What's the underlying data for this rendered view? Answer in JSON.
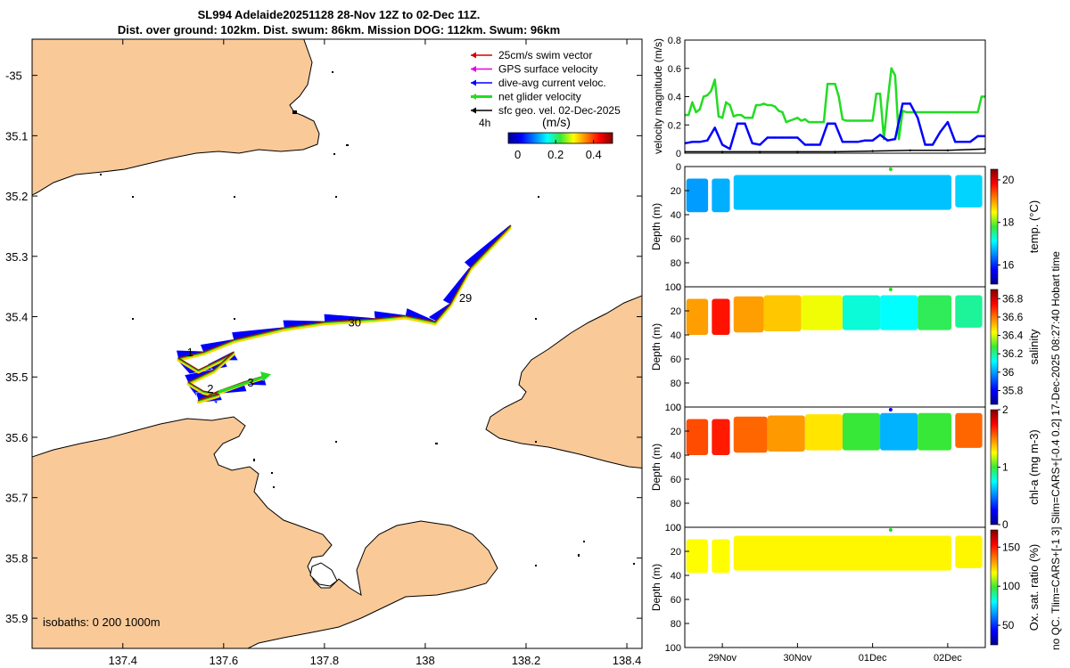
{
  "header": {
    "line1": "SL994 Adelaide20251128 28-Nov 12Z to 02-Dec 11Z.",
    "line2": "Dist. over ground: 102km. Dist. swum: 86km. Mission DOG: 112km. Swum: 96km"
  },
  "side_note": "no QC. Tlim=CARS+[-1 3] Slim=CARS+[-0.4 0.2] 17-Dec-2025 08:27:40 Hobart time",
  "colors": {
    "land": "#f9c998",
    "swim": "#d40000",
    "gps": "#e600e6",
    "dive_avg": "#0000ff",
    "net": "#22dd22",
    "geo": "#000000"
  },
  "chart_data": [
    {
      "type": "map",
      "name": "track-map",
      "xticks": [
        "137.4",
        "137.6",
        "137.8",
        "138",
        "138.2",
        "138.4"
      ],
      "xtick_values": [
        137.4,
        137.6,
        137.8,
        138.0,
        138.2,
        138.4
      ],
      "yticks": [
        "-35",
        "35.1",
        "35.2",
        "35.3",
        "35.4",
        "35.5",
        "35.6",
        "35.7",
        "35.8",
        "35.9"
      ],
      "ytick_values": [
        -35.0,
        -35.1,
        -35.2,
        -35.3,
        -35.4,
        -35.5,
        -35.6,
        -35.7,
        -35.8,
        -35.9
      ],
      "xlim": [
        137.22,
        138.43
      ],
      "ylim": [
        -35.95,
        -34.94
      ],
      "legend": [
        {
          "label": "25cm/s swim vector",
          "color_key": "swim"
        },
        {
          "label": "GPS surface velocity",
          "color_key": "gps"
        },
        {
          "label": "dive-avg current veloc.",
          "color_key": "dive_avg"
        },
        {
          "label": "net glider velocity",
          "color_key": "net"
        },
        {
          "label": "sfc geo. vel. 02-Dec-2025",
          "color_key": "geo"
        }
      ],
      "scale_label": "4h",
      "colorbar": {
        "unit": "(m/s)",
        "ticks": [
          "0",
          "0.2",
          "0.4"
        ],
        "range": [
          -0.05,
          0.5
        ]
      },
      "isobaths_label": "isobaths: 0   200  1000m",
      "day_labels": [
        {
          "text": "29",
          "lon": 138.06,
          "lat": -35.37
        },
        {
          "text": "30",
          "lon": 137.84,
          "lat": -35.41
        },
        {
          "text": "1",
          "lon": 137.52,
          "lat": -35.46
        },
        {
          "text": "2",
          "lon": 137.56,
          "lat": -35.52
        },
        {
          "text": "3",
          "lon": 137.64,
          "lat": -35.51
        }
      ],
      "track": [
        [
          138.17,
          -35.25
        ],
        [
          138.09,
          -35.32
        ],
        [
          138.05,
          -35.38
        ],
        [
          138.02,
          -35.41
        ],
        [
          137.96,
          -35.4
        ],
        [
          137.9,
          -35.405
        ],
        [
          137.8,
          -35.41
        ],
        [
          137.72,
          -35.42
        ],
        [
          137.62,
          -35.44
        ],
        [
          137.56,
          -35.46
        ],
        [
          137.51,
          -35.47
        ],
        [
          137.55,
          -35.49
        ],
        [
          137.6,
          -35.47
        ],
        [
          137.62,
          -35.46
        ],
        [
          137.58,
          -35.49
        ],
        [
          137.53,
          -35.51
        ],
        [
          137.56,
          -35.525
        ],
        [
          137.59,
          -35.53
        ],
        [
          137.55,
          -35.54
        ],
        [
          137.59,
          -35.525
        ],
        [
          137.64,
          -35.51
        ],
        [
          137.68,
          -35.5
        ]
      ]
    },
    {
      "type": "line",
      "name": "velocity-panel",
      "ylabel": "velocity magnitude (m/s)",
      "ylim": [
        0,
        0.8
      ],
      "yticks": [
        "0",
        "0.2",
        "0.4",
        "0.6",
        "0.8"
      ],
      "ytick_values": [
        0,
        0.2,
        0.4,
        0.6,
        0.8
      ],
      "xlim": [
        28.5,
        32.5
      ],
      "series": [
        {
          "name": "net glider velocity",
          "color_key": "net",
          "x": [
            28.5,
            28.55,
            28.6,
            28.65,
            28.7,
            28.75,
            28.8,
            28.85,
            28.9,
            28.95,
            29.0,
            29.05,
            29.1,
            29.15,
            29.2,
            29.25,
            29.3,
            29.35,
            29.4,
            29.45,
            29.5,
            29.55,
            29.6,
            29.65,
            29.7,
            29.75,
            29.8,
            29.85,
            29.9,
            29.95,
            30.0,
            30.05,
            30.1,
            30.15,
            30.2,
            30.25,
            30.3,
            30.35,
            30.4,
            30.45,
            30.5,
            30.55,
            30.6,
            30.65,
            30.7,
            30.75,
            30.8,
            30.85,
            30.9,
            30.95,
            31.0,
            31.05,
            31.1,
            31.15,
            31.2,
            31.25,
            31.3,
            31.35,
            31.4,
            31.45,
            31.5,
            31.55,
            31.6,
            31.65,
            31.7,
            31.75,
            31.8,
            31.85,
            31.9,
            31.95,
            32.0,
            32.05,
            32.1,
            32.15,
            32.2,
            32.25,
            32.3,
            32.35,
            32.4,
            32.45,
            32.5
          ],
          "values": [
            0.27,
            0.27,
            0.36,
            0.29,
            0.31,
            0.4,
            0.41,
            0.44,
            0.52,
            0.26,
            0.25,
            0.36,
            0.34,
            0.26,
            0.27,
            0.27,
            0.25,
            0.25,
            0.25,
            0.34,
            0.34,
            0.35,
            0.34,
            0.34,
            0.33,
            0.3,
            0.29,
            0.22,
            0.23,
            0.24,
            0.25,
            0.23,
            0.24,
            0.22,
            0.22,
            0.22,
            0.22,
            0.22,
            0.49,
            0.49,
            0.49,
            0.4,
            0.24,
            0.23,
            0.23,
            0.23,
            0.23,
            0.23,
            0.23,
            0.23,
            0.23,
            0.42,
            0.42,
            0.1,
            0.37,
            0.6,
            0.55,
            0.1,
            0.3,
            0.29,
            0.29,
            0.29,
            0.29,
            0.29,
            0.29,
            0.29,
            0.29,
            0.29,
            0.29,
            0.29,
            0.29,
            0.29,
            0.29,
            0.29,
            0.29,
            0.29,
            0.29,
            0.29,
            0.29,
            0.4,
            0.4
          ]
        },
        {
          "name": "dive-avg current veloc.",
          "color_key": "dive_avg",
          "x": [
            28.5,
            28.6,
            28.7,
            28.8,
            28.9,
            29.0,
            29.1,
            29.2,
            29.3,
            29.4,
            29.5,
            29.6,
            29.7,
            29.8,
            29.9,
            30.0,
            30.1,
            30.2,
            30.3,
            30.4,
            30.5,
            30.6,
            30.7,
            30.8,
            30.9,
            31.0,
            31.1,
            31.2,
            31.3,
            31.4,
            31.5,
            31.6,
            31.7,
            31.8,
            31.9,
            32.0,
            32.1,
            32.2,
            32.3,
            32.4,
            32.5
          ],
          "values": [
            0.07,
            0.08,
            0.08,
            0.09,
            0.18,
            0.06,
            0.03,
            0.21,
            0.21,
            0.07,
            0.06,
            0.11,
            0.11,
            0.11,
            0.11,
            0.11,
            0.06,
            0.06,
            0.06,
            0.21,
            0.21,
            0.08,
            0.08,
            0.08,
            0.09,
            0.09,
            0.13,
            0.09,
            0.1,
            0.35,
            0.35,
            0.25,
            0.06,
            0.06,
            0.15,
            0.22,
            0.08,
            0.08,
            0.08,
            0.12,
            0.12
          ]
        },
        {
          "name": "sfc geo. vel.",
          "color_key": "geo",
          "x": [
            28.5,
            29.0,
            29.5,
            30.0,
            30.5,
            31.0,
            31.5,
            32.0,
            32.5
          ],
          "values": [
            0.01,
            0.01,
            0.01,
            0.01,
            0.01,
            0.015,
            0.02,
            0.02,
            0.03
          ]
        }
      ]
    },
    {
      "type": "heatmap",
      "name": "temperature-panel",
      "ylabel": "Depth (m)",
      "colorbar_label": "temp. (°C)",
      "yticks": [
        "0",
        "20",
        "40",
        "60",
        "80",
        "100"
      ],
      "cbar_ticks": [
        "16",
        "18",
        "20"
      ],
      "cbar_values": [
        16,
        18,
        20
      ],
      "clim": [
        15.1,
        20.5
      ],
      "segments": [
        {
          "t0": 28.52,
          "t1": 28.81,
          "depth": 38,
          "value": 16.6,
          "top": 10
        },
        {
          "t0": 28.86,
          "t1": 29.1,
          "depth": 38,
          "value": 16.7,
          "top": 10
        },
        {
          "t0": 29.15,
          "t1": 32.05,
          "depth": 36,
          "value": 16.8,
          "top": 7
        },
        {
          "t0": 32.1,
          "t1": 32.46,
          "depth": 34,
          "value": 16.9,
          "top": 7
        }
      ]
    },
    {
      "type": "heatmap",
      "name": "salinity-panel",
      "ylabel": "Depth (m)",
      "colorbar_label": "salinity",
      "yticks": [
        "0",
        "20",
        "40",
        "60",
        "80",
        "100"
      ],
      "cbar_ticks": [
        "35.8",
        "36",
        "36.2",
        "36.4",
        "36.6",
        "36.8"
      ],
      "cbar_values": [
        35.8,
        36.0,
        36.2,
        36.4,
        36.6,
        36.8
      ],
      "clim": [
        35.65,
        36.9
      ],
      "segments": [
        {
          "t0": 28.52,
          "t1": 28.81,
          "depth": 40,
          "value": 36.55,
          "top": 10
        },
        {
          "t0": 28.86,
          "t1": 29.1,
          "depth": 40,
          "value": 36.72,
          "top": 10
        },
        {
          "t0": 29.15,
          "t1": 29.55,
          "depth": 38,
          "value": 36.55,
          "top": 8
        },
        {
          "t0": 29.55,
          "t1": 30.05,
          "depth": 37,
          "value": 36.5,
          "top": 7
        },
        {
          "t0": 30.05,
          "t1": 30.6,
          "depth": 36,
          "value": 36.42,
          "top": 7
        },
        {
          "t0": 30.6,
          "t1": 31.1,
          "depth": 36,
          "value": 36.15,
          "top": 7
        },
        {
          "t0": 31.1,
          "t1": 31.6,
          "depth": 36,
          "value": 36.12,
          "top": 7
        },
        {
          "t0": 31.6,
          "t1": 32.05,
          "depth": 36,
          "value": 36.25,
          "top": 7
        },
        {
          "t0": 32.1,
          "t1": 32.46,
          "depth": 34,
          "value": 36.2,
          "top": 7
        }
      ]
    },
    {
      "type": "heatmap",
      "name": "chlorophyll-panel",
      "ylabel": "Depth (m)",
      "colorbar_label": "chl-a (mg m-3)",
      "yticks": [
        "0",
        "20",
        "40",
        "60",
        "80",
        "100"
      ],
      "cbar_ticks": [
        "0",
        "1",
        "2"
      ],
      "cbar_values": [
        0,
        1,
        2
      ],
      "clim": [
        0,
        2
      ],
      "segments": [
        {
          "t0": 28.52,
          "t1": 28.81,
          "depth": 40,
          "value": 1.6,
          "top": 10
        },
        {
          "t0": 28.86,
          "t1": 29.1,
          "depth": 40,
          "value": 1.7,
          "top": 10
        },
        {
          "t0": 29.15,
          "t1": 29.6,
          "depth": 38,
          "value": 1.55,
          "top": 8
        },
        {
          "t0": 29.6,
          "t1": 30.1,
          "depth": 37,
          "value": 1.45,
          "top": 7
        },
        {
          "t0": 30.1,
          "t1": 30.6,
          "depth": 36,
          "value": 1.3,
          "top": 6
        },
        {
          "t0": 30.6,
          "t1": 31.1,
          "depth": 36,
          "value": 1.0,
          "top": 5
        },
        {
          "t0": 31.1,
          "t1": 31.6,
          "depth": 36,
          "value": 0.6,
          "top": 5
        },
        {
          "t0": 31.6,
          "t1": 32.05,
          "depth": 36,
          "value": 1.0,
          "top": 5
        },
        {
          "t0": 32.1,
          "t1": 32.46,
          "depth": 34,
          "value": 1.55,
          "top": 5
        }
      ]
    },
    {
      "type": "heatmap",
      "name": "oxygen-panel",
      "ylabel": "Depth (m)",
      "colorbar_label": "Ox. sat. ratio (%)",
      "xticks": [
        "29Nov",
        "30Nov",
        "01Dec",
        "02Dec"
      ],
      "xtick_values": [
        29,
        30,
        31,
        32
      ],
      "yticks": [
        "0",
        "20",
        "40",
        "60",
        "80",
        "100"
      ],
      "cbar_ticks": [
        "50",
        "100",
        "150"
      ],
      "cbar_values": [
        50,
        100,
        150
      ],
      "clim": [
        25,
        172
      ],
      "segments": [
        {
          "t0": 28.52,
          "t1": 28.81,
          "depth": 38,
          "value": 117,
          "top": 10
        },
        {
          "t0": 28.86,
          "t1": 29.1,
          "depth": 38,
          "value": 117,
          "top": 10
        },
        {
          "t0": 29.15,
          "t1": 32.05,
          "depth": 36,
          "value": 118,
          "top": 7
        },
        {
          "t0": 32.1,
          "t1": 32.46,
          "depth": 34,
          "value": 118,
          "top": 7
        }
      ]
    }
  ]
}
